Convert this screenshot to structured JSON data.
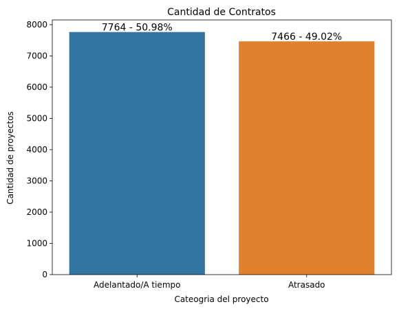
{
  "chart_data": {
    "type": "bar",
    "title": "Cantidad de Contratos",
    "xlabel": "Cateogria del proyecto",
    "ylabel": "Cantidad de proyectos",
    "categories": [
      "Adelantado/A tiempo",
      "Atrasado"
    ],
    "values": [
      7764,
      7466
    ],
    "data_labels": [
      "7764 - 50.98%",
      "7466 - 49.02%"
    ],
    "colors": [
      "#3274a1",
      "#e1812c"
    ],
    "ylim": [
      0,
      8152
    ],
    "yticks": [
      0,
      1000,
      2000,
      3000,
      4000,
      5000,
      6000,
      7000,
      8000
    ],
    "grid": false,
    "legend": "none"
  }
}
